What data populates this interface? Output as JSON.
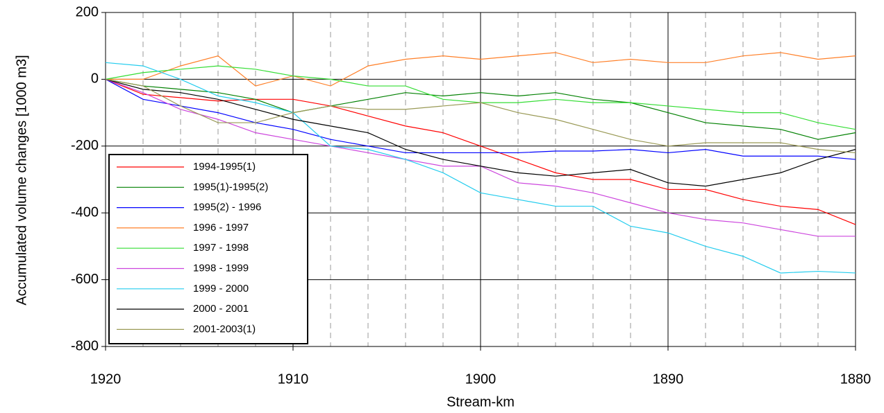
{
  "chart_data": {
    "type": "line",
    "x_label": "Stream-km",
    "y_label": "Accumulated volume changes [1000 m3]",
    "x": [
      1920,
      1918,
      1916,
      1914,
      1912,
      1910,
      1908,
      1906,
      1904,
      1902,
      1900,
      1898,
      1896,
      1894,
      1892,
      1890,
      1888,
      1886,
      1884,
      1882,
      1880
    ],
    "xlim": [
      1920,
      1880
    ],
    "xticks": [
      1920,
      1910,
      1900,
      1890,
      1880
    ],
    "ylim": [
      -800,
      200
    ],
    "yticks": [
      -800,
      -600,
      -400,
      -200,
      0,
      200
    ],
    "grid": true,
    "legend": "lower left",
    "series": [
      {
        "name": "1994-1995(1)",
        "color": "#ff0000",
        "values": [
          0,
          -45,
          -55,
          -65,
          -60,
          -60,
          -80,
          -110,
          -140,
          -160,
          -200,
          -240,
          -280,
          -300,
          -300,
          -330,
          -330,
          -360,
          -380,
          -390,
          -435
        ]
      },
      {
        "name": "1995(1)-1995(2)",
        "color": "#008000",
        "values": [
          0,
          -20,
          -30,
          -40,
          -60,
          -100,
          -80,
          -60,
          -40,
          -50,
          -40,
          -50,
          -40,
          -60,
          -70,
          -100,
          -130,
          -140,
          -150,
          -180,
          -160
        ]
      },
      {
        "name": "1995(2) - 1996",
        "color": "#0000ff",
        "values": [
          0,
          -60,
          -80,
          -100,
          -130,
          -150,
          -180,
          -200,
          -220,
          -220,
          -220,
          -220,
          -215,
          -215,
          -210,
          -220,
          -210,
          -230,
          -230,
          -230,
          -240
        ]
      },
      {
        "name": "1996 - 1997",
        "color": "#ff7f27",
        "values": [
          0,
          0,
          40,
          70,
          -20,
          10,
          -20,
          40,
          60,
          70,
          60,
          70,
          80,
          50,
          60,
          50,
          50,
          70,
          80,
          60,
          70
        ]
      },
      {
        "name": "1997 - 1998",
        "color": "#33dd33",
        "values": [
          0,
          20,
          30,
          40,
          30,
          10,
          0,
          -20,
          -20,
          -60,
          -70,
          -70,
          -60,
          -70,
          -70,
          -80,
          -90,
          -100,
          -100,
          -130,
          -150
        ]
      },
      {
        "name": "1998 - 1999",
        "color": "#cc44dd",
        "values": [
          0,
          -40,
          -90,
          -120,
          -160,
          -180,
          -200,
          -220,
          -240,
          -260,
          -260,
          -310,
          -320,
          -340,
          -370,
          -400,
          -420,
          -430,
          -450,
          -470,
          -470
        ]
      },
      {
        "name": "1999 - 2000",
        "color": "#22ccee",
        "values": [
          50,
          40,
          0,
          -50,
          -70,
          -100,
          -200,
          -210,
          -240,
          -280,
          -340,
          -360,
          -380,
          -380,
          -440,
          -460,
          -500,
          -530,
          -580,
          -575,
          -580
        ]
      },
      {
        "name": "2000 - 2001",
        "color": "#000000",
        "values": [
          0,
          -30,
          -40,
          -60,
          -90,
          -120,
          -140,
          -160,
          -210,
          -240,
          -260,
          -280,
          -290,
          -280,
          -270,
          -310,
          -320,
          -300,
          -280,
          -240,
          -210
        ]
      },
      {
        "name": "2001-2003(1)",
        "color": "#999955",
        "values": [
          0,
          -20,
          -80,
          -130,
          -130,
          -100,
          -80,
          -90,
          -90,
          -80,
          -70,
          -100,
          -120,
          -150,
          -180,
          -200,
          -190,
          -190,
          -190,
          -210,
          -220
        ]
      }
    ]
  }
}
